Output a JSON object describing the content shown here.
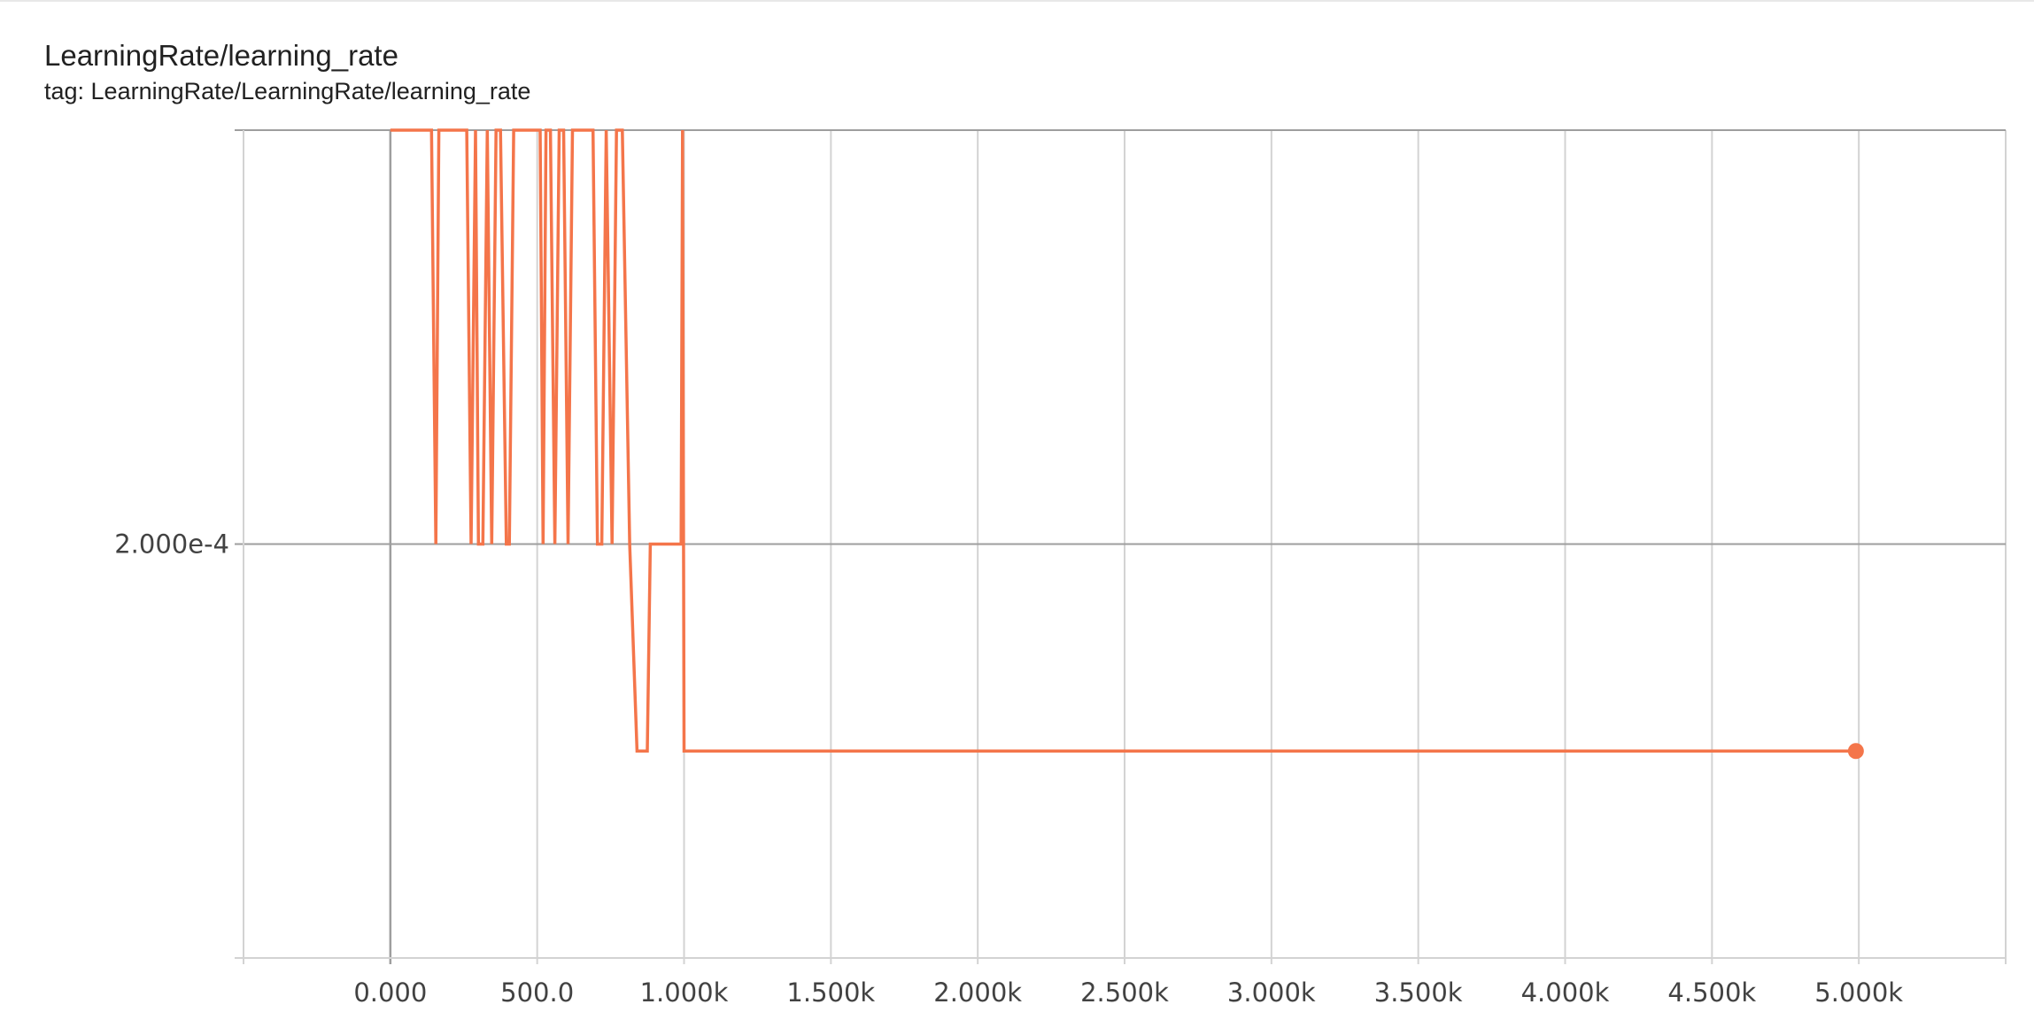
{
  "card": {
    "title": "LearningRate/learning_rate",
    "tag": "tag: LearningRate/LearningRate/learning_rate"
  },
  "colors": {
    "series": "#f4754a",
    "grid": "#d3d3d3",
    "axis": "#9e9e9e",
    "text": "#424242"
  },
  "chart_data": {
    "type": "line",
    "title": "LearningRate/learning_rate",
    "xlabel": "",
    "ylabel": "",
    "xlim": [
      -500,
      5500
    ],
    "ylim": [
      0.0001,
      0.0003
    ],
    "grid": true,
    "x_ticks": [
      {
        "value": -500,
        "label": ""
      },
      {
        "value": 0,
        "label": "0.000"
      },
      {
        "value": 500,
        "label": "500.0"
      },
      {
        "value": 1000,
        "label": "1.000k"
      },
      {
        "value": 1500,
        "label": "1.500k"
      },
      {
        "value": 2000,
        "label": "2.000k"
      },
      {
        "value": 2500,
        "label": "2.500k"
      },
      {
        "value": 3000,
        "label": "3.000k"
      },
      {
        "value": 3500,
        "label": "3.500k"
      },
      {
        "value": 4000,
        "label": "4.000k"
      },
      {
        "value": 4500,
        "label": "4.500k"
      },
      {
        "value": 5000,
        "label": "5.000k"
      },
      {
        "value": 5500,
        "label": ""
      }
    ],
    "y_ticks": [
      {
        "value": 0.0002,
        "label": "2.000e-4"
      }
    ],
    "series": [
      {
        "color": "#f4754a",
        "x": [
          0,
          140,
          155,
          165,
          260,
          275,
          290,
          300,
          315,
          330,
          345,
          360,
          375,
          395,
          405,
          420,
          435,
          510,
          520,
          530,
          545,
          560,
          575,
          590,
          605,
          620,
          690,
          705,
          720,
          735,
          755,
          770,
          790,
          815,
          840,
          875,
          885,
          990,
          995,
          1000,
          4990
        ],
        "y": [
          0.0003,
          0.0003,
          0.0002,
          0.0003,
          0.0003,
          0.0002,
          0.0003,
          0.0002,
          0.0002,
          0.0003,
          0.0002,
          0.0003,
          0.0003,
          0.0002,
          0.0002,
          0.0003,
          0.0003,
          0.0003,
          0.0002,
          0.0003,
          0.0003,
          0.0002,
          0.0003,
          0.0003,
          0.0002,
          0.0003,
          0.0003,
          0.0002,
          0.0002,
          0.0003,
          0.0002,
          0.0003,
          0.0003,
          0.0002,
          0.00015,
          0.00015,
          0.0002,
          0.0002,
          0.0003,
          0.00015,
          0.00015
        ]
      }
    ]
  }
}
